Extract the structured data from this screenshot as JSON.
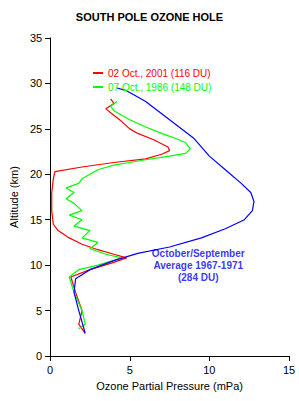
{
  "chart_data": {
    "type": "line",
    "title": "SOUTH POLE OZONE HOLE",
    "xlabel": "Ozone Partial Pressure (mPa)",
    "ylabel": "Altitude (km)",
    "xlim": [
      0,
      15
    ],
    "xticks": [
      0,
      5,
      10,
      15
    ],
    "ylim": [
      0,
      35
    ],
    "yticks": [
      0,
      5,
      10,
      15,
      20,
      25,
      30,
      35
    ],
    "grid": false,
    "legend": "upper left",
    "series": [
      {
        "name": "02 Oct., 2001 (116 DU)",
        "color": "#ff0000",
        "x": [
          2.2,
          1.8,
          2.0,
          1.6,
          1.3,
          2.5,
          4.0,
          4.8,
          4.0,
          3.0,
          2.0,
          1.2,
          0.5,
          0.2,
          0.1,
          0.1,
          0.2,
          0.3,
          2.0,
          4.0,
          6.0,
          7.0,
          7.5,
          7.4,
          6.5,
          5.5,
          5.0,
          4.5,
          4.0,
          3.5,
          4.0,
          3.8
        ],
        "values": [
          2.5,
          3.5,
          5.0,
          7.0,
          8.7,
          9.5,
          10.3,
          10.8,
          11.2,
          11.7,
          12.3,
          13.0,
          13.8,
          14.5,
          16.0,
          18.0,
          19.5,
          20.3,
          20.8,
          21.3,
          21.7,
          22.2,
          22.6,
          23.0,
          23.8,
          24.5,
          25.0,
          25.8,
          26.5,
          27.2,
          27.8,
          28.3
        ]
      },
      {
        "name": "07 Oct., 1986 (148 DU)",
        "color": "#00ff00",
        "x": [
          1.8,
          2.2,
          2.0,
          1.5,
          1.2,
          1.8,
          3.0,
          4.5,
          3.5,
          2.5,
          3.0,
          2.0,
          2.5,
          1.5,
          2.0,
          1.2,
          2.0,
          1.5,
          1.0,
          1.5,
          1.0,
          1.8,
          2.0,
          2.5,
          3.0,
          4.0,
          5.0,
          6.0,
          7.5,
          8.5,
          8.8,
          8.5,
          7.8,
          7.0,
          6.0,
          5.0,
          4.5,
          4.0,
          3.8,
          4.2
        ],
        "values": [
          3.0,
          3.5,
          5.0,
          7.0,
          8.7,
          9.5,
          10.0,
          10.8,
          11.2,
          11.8,
          12.5,
          13.0,
          13.8,
          14.3,
          15.0,
          15.5,
          16.0,
          16.8,
          17.3,
          18.0,
          18.5,
          19.0,
          19.5,
          20.0,
          20.5,
          21.0,
          21.3,
          21.6,
          22.0,
          22.3,
          22.8,
          23.5,
          24.0,
          24.5,
          25.2,
          26.0,
          26.5,
          27.0,
          27.5,
          28.0
        ]
      },
      {
        "color": "#0000ff",
        "x": [
          2.2,
          1.8,
          1.5,
          1.6,
          2.5,
          4.0,
          5.5,
          7.5,
          9.5,
          11.0,
          12.2,
          12.7,
          12.8,
          12.6,
          12.0,
          11.0,
          10.0,
          9.0,
          7.5,
          6.0,
          4.8,
          4.2
        ],
        "values": [
          2.5,
          5.0,
          7.0,
          8.5,
          9.5,
          10.5,
          11.3,
          12.0,
          13.0,
          14.0,
          15.0,
          16.0,
          17.0,
          18.0,
          19.0,
          20.5,
          22.0,
          24.0,
          26.0,
          28.0,
          29.2,
          29.5
        ]
      }
    ],
    "annotations": [
      {
        "text": "October/September\nAverage 1967-1971\n(284 DU)",
        "x": 9.3,
        "y": 10,
        "color": "#0000ff"
      }
    ]
  }
}
